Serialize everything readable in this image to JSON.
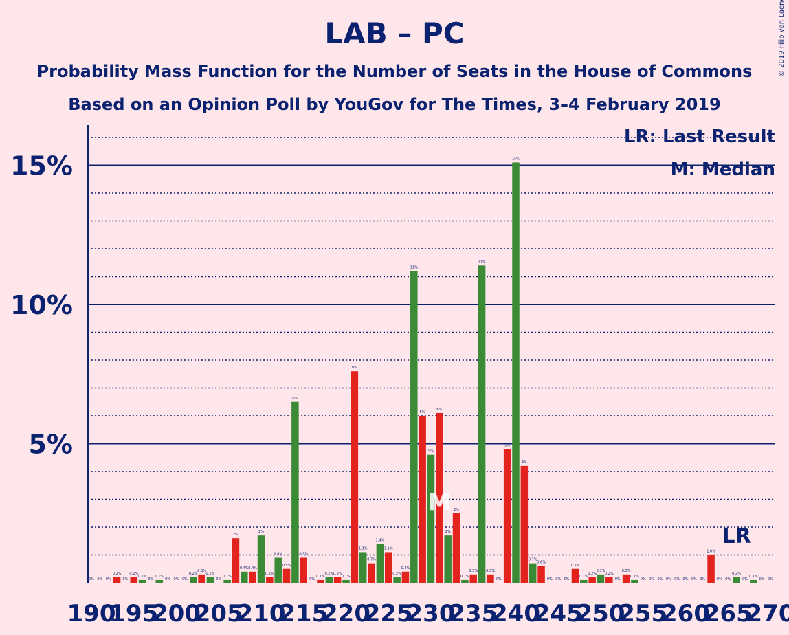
{
  "title": "LAB – PC",
  "subtitle": "Probability Mass Function for the Number of Seats in the House of Commons",
  "subtitle2": "Based on an Opinion Poll by YouGov for The Times, 3–4 February 2019",
  "copyright": "© 2019 Filip van Laenen",
  "legend": {
    "last_result": "LR: Last Result",
    "median": "M: Median"
  },
  "markers": {
    "last_result_label": "LR",
    "median_label": "M"
  },
  "colors": {
    "red": "#E3241E",
    "green": "#3A8A36",
    "axis": "#0B2270",
    "background": "#FFE6EA"
  },
  "chart_data": {
    "type": "bar",
    "xlabel": "",
    "ylabel": "",
    "ylim": [
      0,
      16.5
    ],
    "y_major_ticks": [
      5,
      10,
      15
    ],
    "y_tick_labels": [
      "5%",
      "10%",
      "15%"
    ],
    "x_tick_labels": [
      "190",
      "195",
      "200",
      "205",
      "210",
      "215",
      "220",
      "225",
      "230",
      "235",
      "240",
      "245",
      "250",
      "255",
      "260",
      "265",
      "270"
    ],
    "median_seat": 231,
    "last_result_seat": 266,
    "seats": [
      190,
      191,
      192,
      193,
      194,
      195,
      196,
      197,
      198,
      199,
      200,
      201,
      202,
      203,
      204,
      205,
      206,
      207,
      208,
      209,
      210,
      211,
      212,
      213,
      214,
      215,
      216,
      217,
      218,
      219,
      220,
      221,
      222,
      223,
      224,
      225,
      226,
      227,
      228,
      229,
      230,
      231,
      232,
      233,
      234,
      235,
      236,
      237,
      238,
      239,
      240,
      241,
      242,
      243,
      244,
      245,
      246,
      247,
      248,
      249,
      250,
      251,
      252,
      253,
      254,
      255,
      256,
      257,
      258,
      259,
      260,
      261,
      262,
      263,
      264,
      265,
      266,
      267,
      268,
      269,
      270
    ],
    "values": [
      0,
      0,
      0,
      0.2,
      0,
      0.2,
      0.1,
      0,
      0.1,
      0,
      0,
      0,
      0.2,
      0.3,
      0.2,
      0,
      0.1,
      1.6,
      0.4,
      0.4,
      1.7,
      0.2,
      0.9,
      0.5,
      6.5,
      0.9,
      0,
      0.1,
      0.2,
      0.2,
      0.1,
      7.6,
      1.1,
      0.7,
      1.4,
      1.1,
      0.2,
      0.4,
      11.2,
      6.0,
      4.6,
      6.1,
      1.7,
      2.5,
      0.1,
      0.3,
      11.4,
      0.3,
      0,
      4.8,
      15.1,
      4.2,
      0.7,
      0.6,
      0,
      0,
      0,
      0.5,
      0.1,
      0.2,
      0.3,
      0.2,
      0,
      0.3,
      0.1,
      0,
      0,
      0,
      0,
      0,
      0,
      0,
      0,
      1.0,
      0,
      0,
      0.2,
      0,
      0.1,
      0,
      0
    ],
    "bar_labels": [
      "0%",
      "0%",
      "0%",
      "0.2%",
      "0%",
      "0.2%",
      "0.1%",
      "0%",
      "0.1%",
      "0%",
      "0%",
      "0%",
      "0.2%",
      "0.3%",
      "0.2%",
      "0%",
      "0.1%",
      "2%",
      "0.4%",
      "0.4%",
      "2%",
      "0.2%",
      "0.9%",
      "0.5%",
      "6%",
      "0.9%",
      "0%",
      "0.1%",
      "0.2%",
      "0.2%",
      "0.1%",
      "8%",
      "1.1%",
      "0.7%",
      "1.4%",
      "1.1%",
      "0.2%",
      "0.4%",
      "11%",
      "6%",
      "5%",
      "6%",
      "2%",
      "2%",
      "0.1%",
      "0.3%",
      "11%",
      "0.3%",
      "0%",
      "5%",
      "15%",
      "4%",
      "0.7%",
      "0.6%",
      "0%",
      "0%",
      "0%",
      "0.5%",
      "0.1%",
      "0.2%",
      "0.3%",
      "0.2%",
      "0%",
      "0.3%",
      "0.1%",
      "0%",
      "0%",
      "0%",
      "0%",
      "0%",
      "0%",
      "0%",
      "0%",
      "1.0%",
      "0%",
      "0%",
      "0.2%",
      "0%",
      "0.1%",
      "0%",
      "0%"
    ]
  }
}
